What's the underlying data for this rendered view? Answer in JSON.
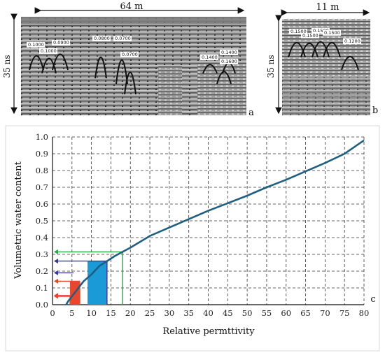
{
  "panel_a": {
    "width_label": "64 m",
    "time_label": "35 ns",
    "panel_letter": "a",
    "velocity_labels": [
      "0.1000",
      "0.1000",
      "0.0900",
      "0.0800",
      "0.0700",
      "0.0700",
      "0.1400",
      "0.1400",
      "0.1600"
    ]
  },
  "panel_b": {
    "width_label": "11 m",
    "time_label": "35 ns",
    "panel_letter": "b",
    "velocity_labels": [
      "0.1500",
      "0.1500",
      "0.1500",
      "0.1500",
      "0.1200"
    ]
  },
  "chart_data": {
    "type": "line",
    "panel_letter": "c",
    "xlabel": "Relative permttivity",
    "ylabel": "Volumetric water content",
    "xlim": [
      0,
      80
    ],
    "ylim": [
      0,
      1.0
    ],
    "xticks": [
      0,
      5,
      10,
      15,
      20,
      25,
      30,
      35,
      40,
      45,
      50,
      55,
      60,
      65,
      70,
      75,
      80
    ],
    "yticks": [
      0.0,
      0.1,
      0.2,
      0.3,
      0.4,
      0.5,
      0.6,
      0.7,
      0.8,
      0.9,
      1.0
    ],
    "grid": true,
    "series": [
      {
        "x": [
          3.5,
          4,
          5,
          6,
          7,
          8,
          10,
          12,
          14,
          16,
          18,
          20,
          25,
          30,
          35,
          40,
          45,
          50,
          55,
          60,
          65,
          70,
          75,
          80
        ],
        "y": [
          0.0,
          0.02,
          0.05,
          0.08,
          0.11,
          0.14,
          0.18,
          0.23,
          0.26,
          0.29,
          0.315,
          0.34,
          0.41,
          0.46,
          0.51,
          0.56,
          0.605,
          0.65,
          0.7,
          0.745,
          0.795,
          0.845,
          0.9,
          0.98
        ]
      }
    ],
    "bars": [
      {
        "x0": 4.5,
        "x1": 7.0,
        "y": 0.14,
        "color": "#e8472b"
      },
      {
        "x0": 9.0,
        "x1": 14.0,
        "y": 0.26,
        "color": "#1a9ad6"
      }
    ],
    "guides": [
      {
        "x": 18,
        "y": 0.315,
        "color": "#2aa843"
      },
      {
        "x": 14,
        "y": 0.26,
        "color": "#3a3a9c"
      },
      {
        "x": 4.5,
        "y": 0.05,
        "color": "#e8472b"
      },
      {
        "x": 7,
        "y": 0.14,
        "color": "#e8472b"
      }
    ],
    "arrows": [
      {
        "y": 0.19,
        "color": "#3a3a9c"
      },
      {
        "y": 0.055,
        "color": "#e8472b"
      }
    ],
    "colors": {
      "curve": "#1f5f7f",
      "grid": "#333333"
    }
  }
}
